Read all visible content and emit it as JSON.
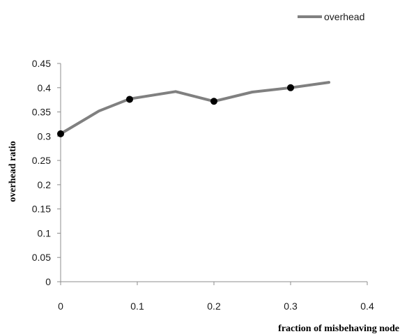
{
  "chart_data": {
    "type": "line",
    "title": "",
    "xlabel": "fraction of misbehaving node",
    "ylabel": "overhead ratio",
    "xlim": [
      0,
      0.4
    ],
    "ylim": [
      0,
      0.45
    ],
    "x_ticks": [
      "0",
      "0.1",
      "0.2",
      "0.3",
      "0.4"
    ],
    "y_ticks": [
      "0",
      "0.05",
      "0.1",
      "0.15",
      "0.2",
      "0.25",
      "0.3",
      "0.35",
      "0.4",
      "0.45"
    ],
    "grid": false,
    "legend_position": "top-right",
    "series": [
      {
        "name": "overhead",
        "color": "#808080",
        "x": [
          0.0,
          0.05,
          0.09,
          0.15,
          0.2,
          0.25,
          0.3,
          0.35
        ],
        "y": [
          0.305,
          0.352,
          0.377,
          0.392,
          0.372,
          0.391,
          0.4,
          0.411
        ],
        "markers": [
          {
            "x": 0.0,
            "y": 0.305
          },
          {
            "x": 0.09,
            "y": 0.376
          },
          {
            "x": 0.2,
            "y": 0.372
          },
          {
            "x": 0.3,
            "y": 0.4
          }
        ],
        "marker_color": "#000000"
      }
    ]
  }
}
